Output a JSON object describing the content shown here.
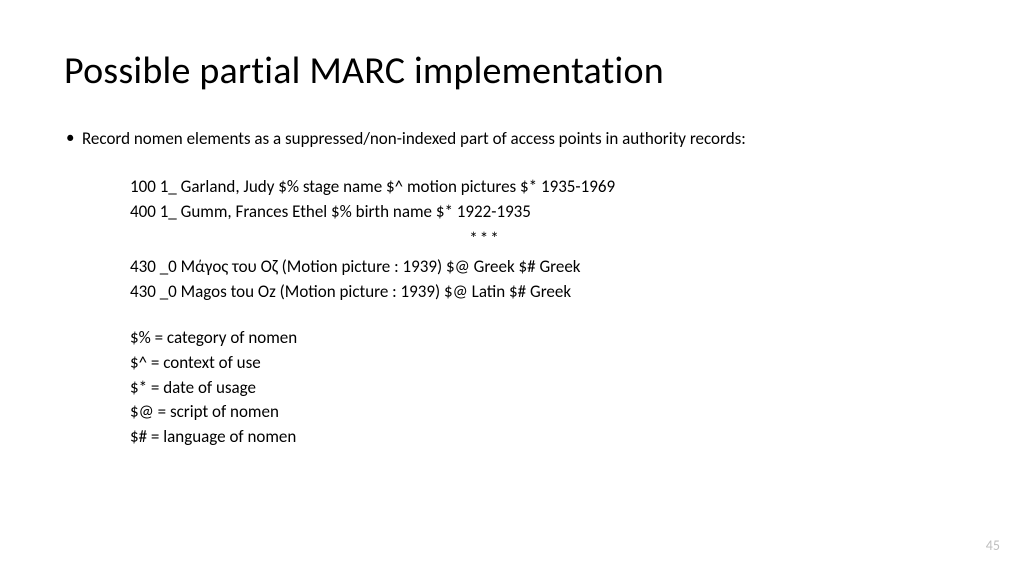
{
  "title": "Possible partial MARC implementation",
  "bullet_text": "Record nomen elements as a suppressed/non-indexed part of access points in authority records:",
  "records": {
    "r1": "100 1_  Garland, Judy $% stage name $^ motion pictures $* 1935-1969",
    "r2": "400 1_  Gumm, Frances Ethel $% birth name $* 1922-1935",
    "divider": "***",
    "r3": "430 _0  Μάγος του Οζ (Motion picture : 1939) $@ Greek $# Greek",
    "r4": "430 _0  Magos tou Oz (Motion picture : 1939) $@ Latin $# Greek"
  },
  "legend": {
    "l1": "$% = category of nomen",
    "l2": "$^ = context of use",
    "l3": "$* = date of usage",
    "l4": "$@ = script of nomen",
    "l5": "$# = language of nomen"
  },
  "page_number": "45",
  "colors": {
    "background": "#ffffff",
    "text": "#000000",
    "page_number": "#bfbfbf"
  },
  "fonts": {
    "title_size_pt": 38,
    "body_size_pt": 17,
    "page_number_size_pt": 14,
    "family": "Calibri"
  }
}
